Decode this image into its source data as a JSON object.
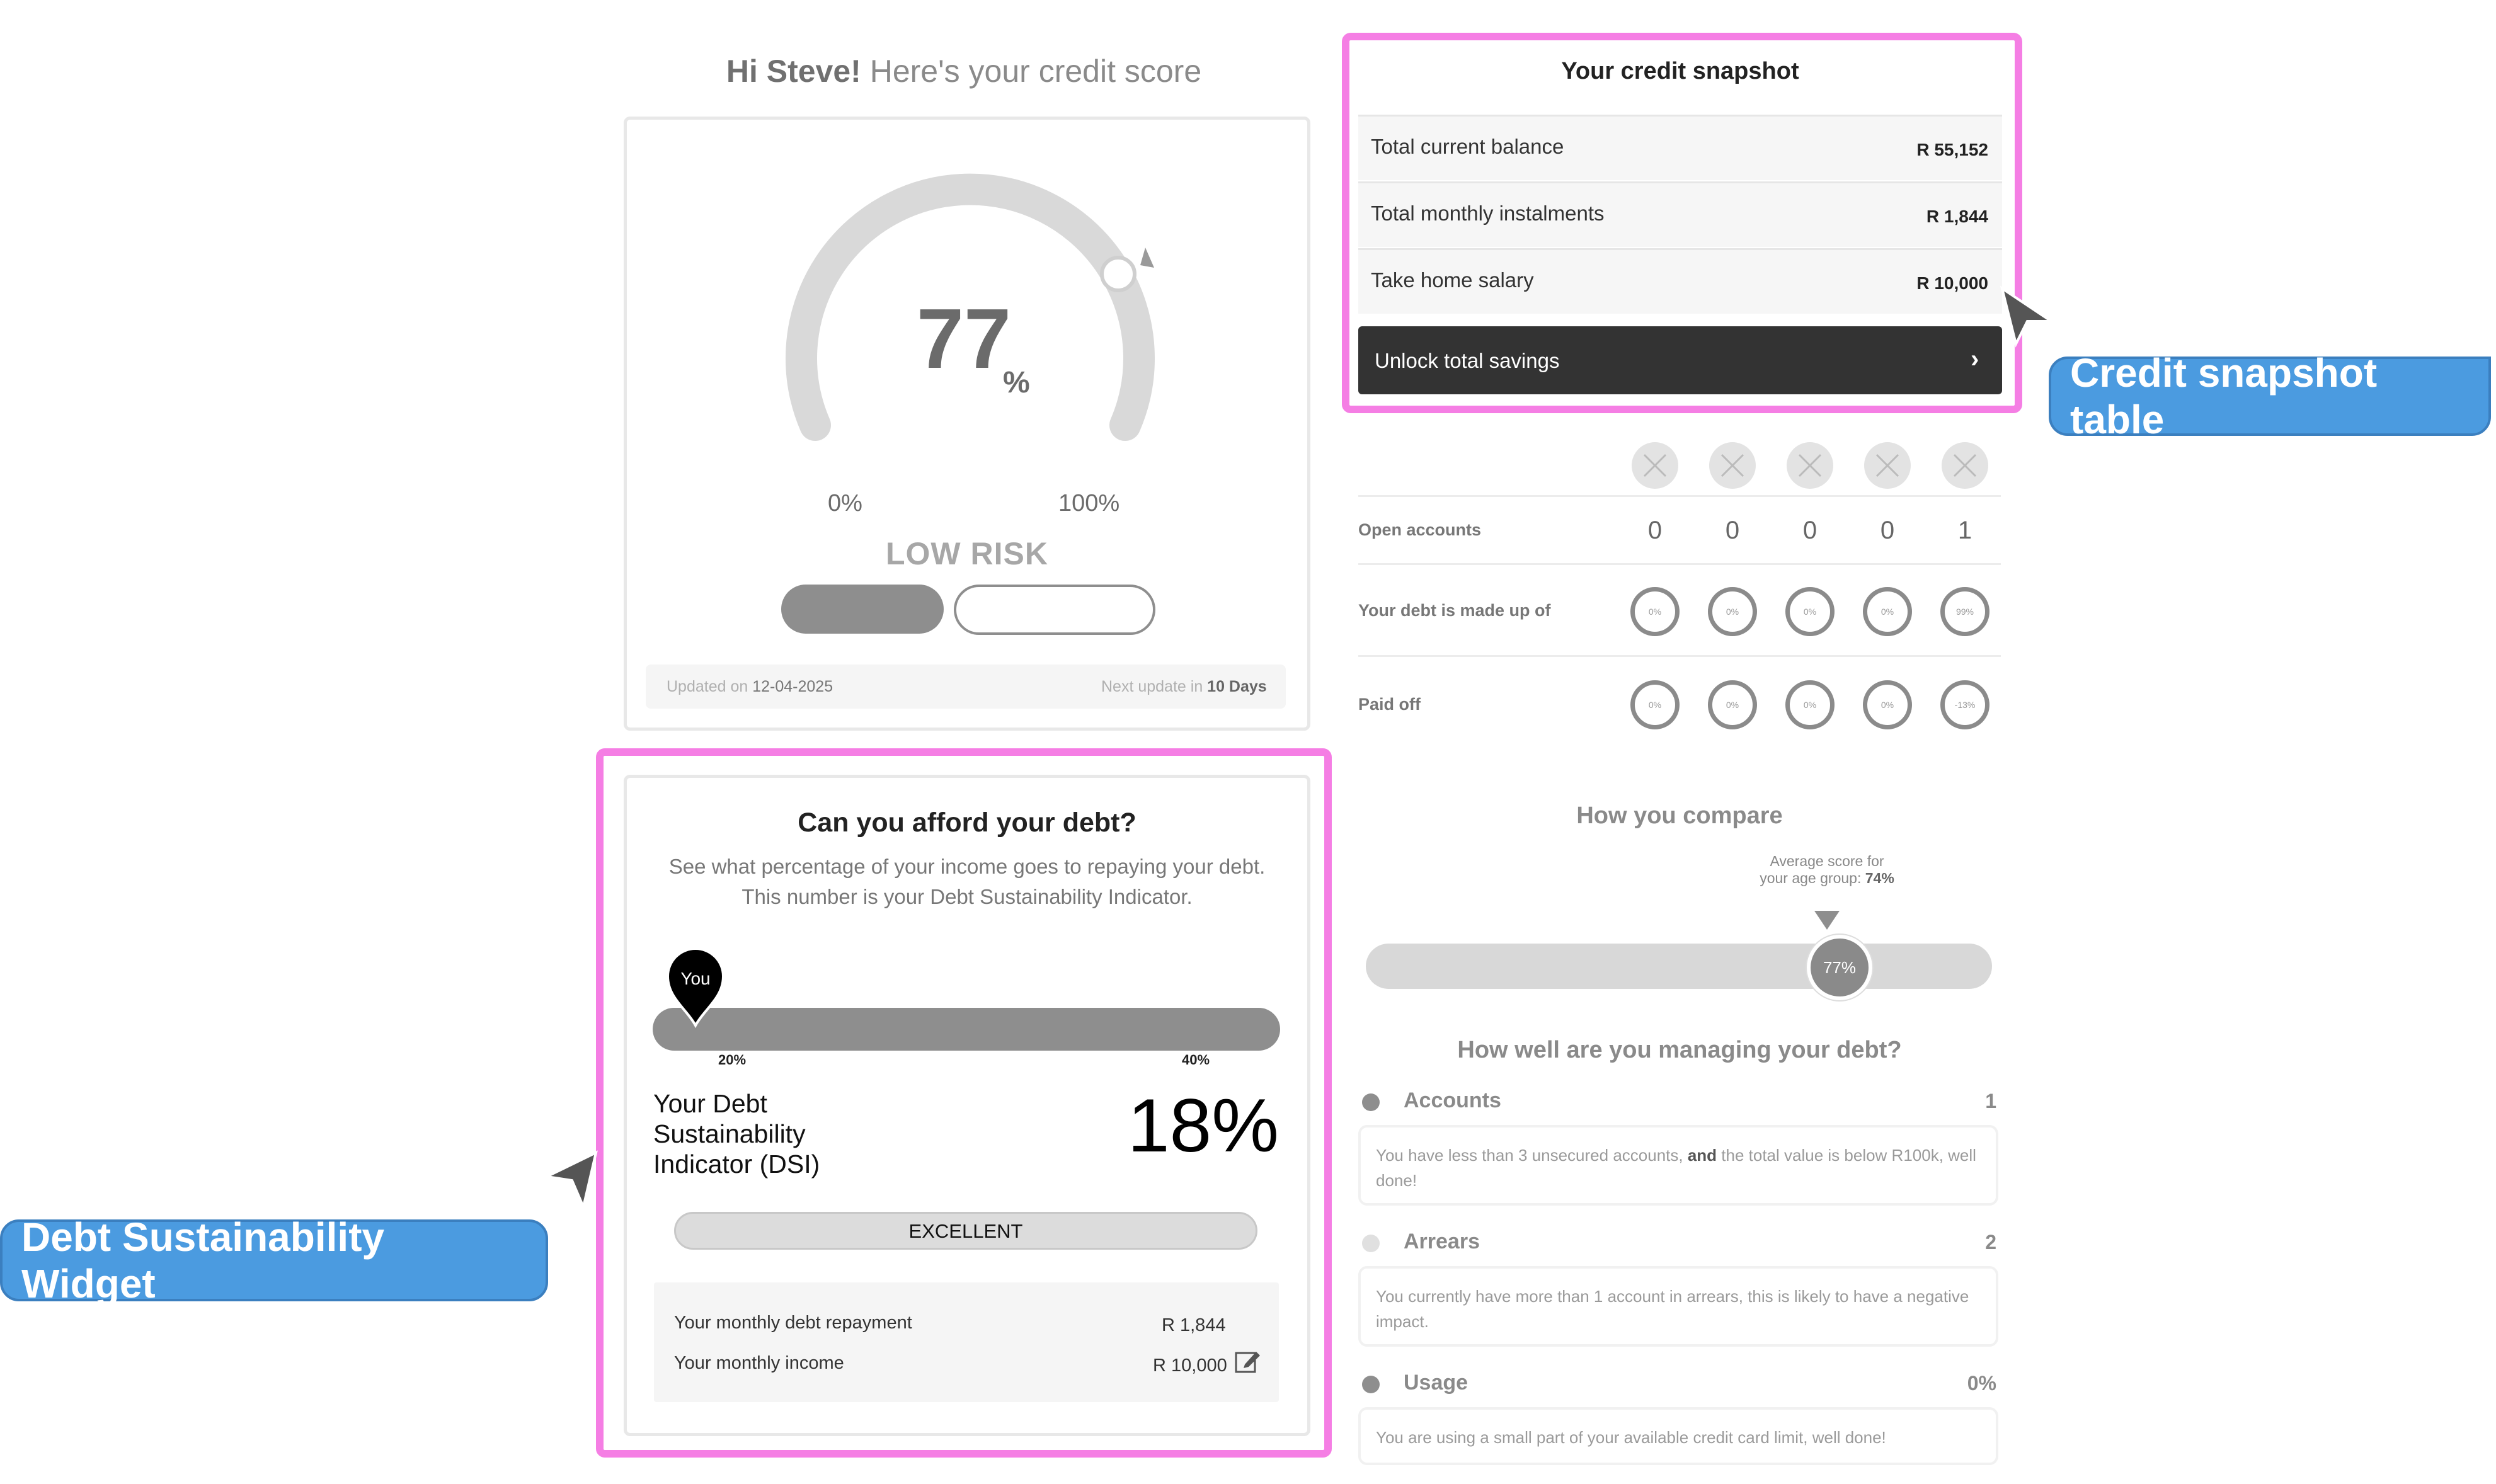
{
  "greeting": {
    "name": "Hi Steve!",
    "text": "Here's your credit score"
  },
  "score": {
    "value": "77",
    "unit": "%",
    "gauge_fraction": 0.77,
    "min_label": "0%",
    "max_label": "100%",
    "risk_label": "LOW RISK",
    "updated_prefix": "Updated on",
    "updated_date": "12-04-2025",
    "next_prefix": "Next update in",
    "next_value": "10 Days"
  },
  "snapshot": {
    "title": "Your credit snapshot",
    "rows": [
      {
        "label": "Total current balance",
        "value": "R 55,152"
      },
      {
        "label": "Total monthly instalments",
        "value": "R 1,844"
      },
      {
        "label": "Take home salary",
        "value": "R 10,000"
      }
    ],
    "unlock_label": "Unlock total savings"
  },
  "accounts_grid": {
    "rows": [
      {
        "label": "Open accounts",
        "values": [
          "0",
          "0",
          "0",
          "0",
          "1"
        ]
      },
      {
        "label": "Your debt is made up of",
        "values": [
          "0%",
          "0%",
          "0%",
          "0%",
          "99%"
        ]
      },
      {
        "label": "Paid off",
        "values": [
          "0%",
          "0%",
          "0%",
          "0%",
          "-13%"
        ]
      }
    ]
  },
  "compare": {
    "title": "How you compare",
    "avg_text": "Average score for your age group:",
    "avg_value": "74%",
    "you_value": "77%"
  },
  "managing": {
    "title": "How well are you managing your debt?",
    "items": [
      {
        "name": "Accounts",
        "value": "1",
        "desc_a": "You have less than 3 unsecured accounts, ",
        "desc_bold": "and",
        "desc_b": " the total value is below R100k, well done!",
        "bullet": "#8e8e8e"
      },
      {
        "name": "Arrears",
        "value": "2",
        "desc": "You currently have more than 1 account in arrears, this is likely to have a negative impact.",
        "bullet": "#e0e0e0"
      },
      {
        "name": "Usage",
        "value": "0%",
        "desc": "You are using a small part of your available credit card limit, well done!",
        "bullet": "#8e8e8e"
      }
    ]
  },
  "dsi": {
    "title": "Can you afford your debt?",
    "subtitle_1": "See what percentage of your income goes to repaying your debt.",
    "subtitle_2": "This number is your Debt Sustainability Indicator.",
    "you_label": "You",
    "tick_20": "20%",
    "tick_40": "40%",
    "name_label": "Your Debt Sustainability Indicator (DSI)",
    "value": "18%",
    "rating": "EXCELLENT",
    "repayment_label": "Your monthly debt repayment",
    "repayment_value": "R 1,844",
    "income_label": "Your monthly income",
    "income_value": "R 10,000"
  },
  "annotations": {
    "snapshot": "Credit snapshot table",
    "dsi": "Debt Sustainability Widget"
  },
  "colors": {
    "highlight": "#f57ee4",
    "callout": "#4b9be0",
    "accent_grey": "#8e8e8e"
  }
}
